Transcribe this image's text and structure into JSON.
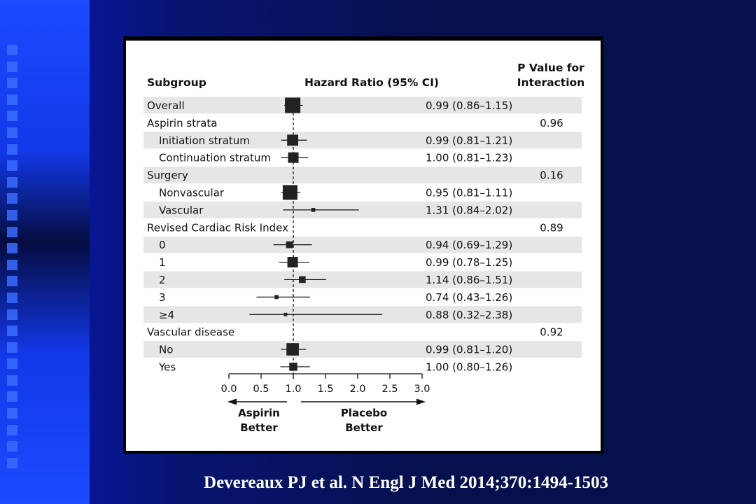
{
  "chart_data": {
    "type": "forest",
    "headers": {
      "subgroup": "Subgroup",
      "hazard_ratio": "Hazard Ratio (95% CI)",
      "p_value_line1": "P Value for",
      "p_value_line2": "Interaction"
    },
    "rows": [
      {
        "label": "Overall",
        "indent": false,
        "shaded": true,
        "hr": 0.99,
        "lo": 0.86,
        "hi": 1.15,
        "ci_text": "0.99 (0.86–1.15)",
        "p": "",
        "weight": 1.0
      },
      {
        "label": "Aspirin strata",
        "indent": false,
        "shaded": false,
        "hr": null,
        "lo": null,
        "hi": null,
        "ci_text": "",
        "p": "0.96",
        "weight": 0
      },
      {
        "label": "Initiation stratum",
        "indent": true,
        "shaded": true,
        "hr": 0.99,
        "lo": 0.81,
        "hi": 1.21,
        "ci_text": "0.99 (0.81–1.21)",
        "p": "",
        "weight": 0.45
      },
      {
        "label": "Continuation stratum",
        "indent": true,
        "shaded": false,
        "hr": 1.0,
        "lo": 0.81,
        "hi": 1.23,
        "ci_text": "1.00 (0.81–1.23)",
        "p": "",
        "weight": 0.4
      },
      {
        "label": "Surgery",
        "indent": false,
        "shaded": true,
        "hr": null,
        "lo": null,
        "hi": null,
        "ci_text": "",
        "p": "0.16",
        "weight": 0
      },
      {
        "label": "Nonvascular",
        "indent": true,
        "shaded": false,
        "hr": 0.95,
        "lo": 0.81,
        "hi": 1.11,
        "ci_text": "0.95 (0.81–1.11)",
        "p": "",
        "weight": 0.9
      },
      {
        "label": "Vascular",
        "indent": true,
        "shaded": true,
        "hr": 1.31,
        "lo": 0.84,
        "hi": 2.02,
        "ci_text": "1.31 (0.84–2.02)",
        "p": "",
        "weight": 0.02
      },
      {
        "label": "Revised Cardiac Risk Index",
        "indent": false,
        "shaded": false,
        "hr": null,
        "lo": null,
        "hi": null,
        "ci_text": "",
        "p": "0.89",
        "weight": 0
      },
      {
        "label": "0",
        "indent": true,
        "shaded": true,
        "hr": 0.94,
        "lo": 0.69,
        "hi": 1.29,
        "ci_text": "0.94 (0.69–1.29)",
        "p": "",
        "weight": 0.12
      },
      {
        "label": "1",
        "indent": true,
        "shaded": false,
        "hr": 0.99,
        "lo": 0.78,
        "hi": 1.25,
        "ci_text": "0.99 (0.78–1.25)",
        "p": "",
        "weight": 0.4
      },
      {
        "label": "2",
        "indent": true,
        "shaded": true,
        "hr": 1.14,
        "lo": 0.86,
        "hi": 1.51,
        "ci_text": "1.14 (0.86–1.51)",
        "p": "",
        "weight": 0.12
      },
      {
        "label": "3",
        "indent": true,
        "shaded": false,
        "hr": 0.74,
        "lo": 0.43,
        "hi": 1.26,
        "ci_text": "0.74 (0.43–1.26)",
        "p": "",
        "weight": 0.02
      },
      {
        "label": "≥4",
        "indent": true,
        "shaded": true,
        "hr": 0.88,
        "lo": 0.32,
        "hi": 2.38,
        "ci_text": "0.88 (0.32–2.38)",
        "p": "",
        "weight": 0.01
      },
      {
        "label": "Vascular disease",
        "indent": false,
        "shaded": false,
        "hr": null,
        "lo": null,
        "hi": null,
        "ci_text": "",
        "p": "0.92",
        "weight": 0
      },
      {
        "label": "No",
        "indent": true,
        "shaded": true,
        "hr": 0.99,
        "lo": 0.81,
        "hi": 1.2,
        "ci_text": "0.99 (0.81–1.20)",
        "p": "",
        "weight": 0.6
      },
      {
        "label": "Yes",
        "indent": true,
        "shaded": false,
        "hr": 1.0,
        "lo": 0.8,
        "hi": 1.26,
        "ci_text": "1.00 (0.80–1.26)",
        "p": "",
        "weight": 0.2
      }
    ],
    "x_axis": {
      "range": [
        0,
        3
      ],
      "ticks": [
        0,
        0.5,
        1,
        1.5,
        2,
        2.5,
        3
      ],
      "tick_labels": [
        "0.0",
        "0.5",
        "1.0",
        "1.5",
        "2.0",
        "2.5",
        "3.0"
      ],
      "reference_line": 1.0
    },
    "arrows": {
      "left_line1": "Aspirin",
      "left_line2": "Better",
      "right_line1": "Placebo",
      "right_line2": "Better"
    }
  },
  "citation": "Devereaux PJ et al. N Engl J Med 2014;370:1494-1503"
}
